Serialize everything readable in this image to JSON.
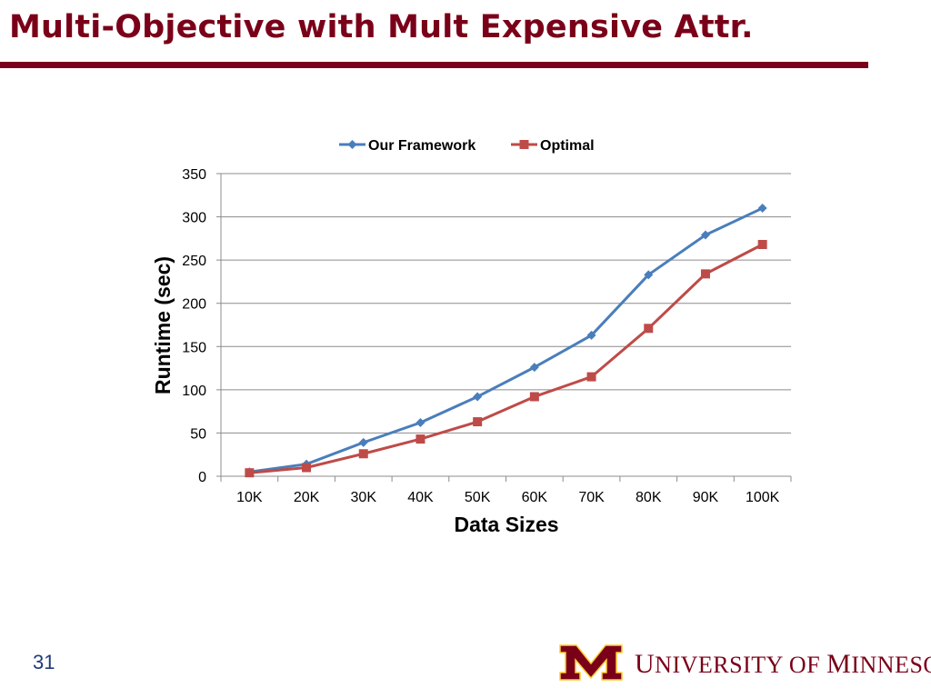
{
  "slide": {
    "title": "Multi-Objective with Mult Expensive Attr.",
    "page_number": "31",
    "logo_text_parts": [
      {
        "t": "U",
        "big": true
      },
      {
        "t": "NIVERSITY ",
        "big": false
      },
      {
        "t": "OF ",
        "big": false
      },
      {
        "t": "M",
        "big": true
      },
      {
        "t": "INNESOTA",
        "big": false
      }
    ],
    "logo_alt": "University of Minnesota",
    "colors": {
      "maroon": "#7a0019",
      "gold": "#ffcc33"
    }
  },
  "chart_data": {
    "type": "line",
    "title": "",
    "xlabel": "Data Sizes",
    "ylabel": "Runtime (sec)",
    "categories": [
      "10K",
      "20K",
      "30K",
      "40K",
      "50K",
      "60K",
      "70K",
      "80K",
      "90K",
      "100K"
    ],
    "ylim": [
      0,
      350
    ],
    "yticks": [
      0,
      50,
      100,
      150,
      200,
      250,
      300,
      350
    ],
    "grid": true,
    "legend_position": "top-center",
    "series": [
      {
        "name": "Our Framework",
        "color": "#4a7ebb",
        "marker": "diamond",
        "values": [
          5,
          14,
          39,
          62,
          92,
          126,
          163,
          233,
          279,
          310
        ]
      },
      {
        "name": "Optimal",
        "color": "#be4b48",
        "marker": "square",
        "values": [
          4,
          10,
          26,
          43,
          63,
          92,
          115,
          171,
          234,
          268
        ]
      }
    ]
  }
}
